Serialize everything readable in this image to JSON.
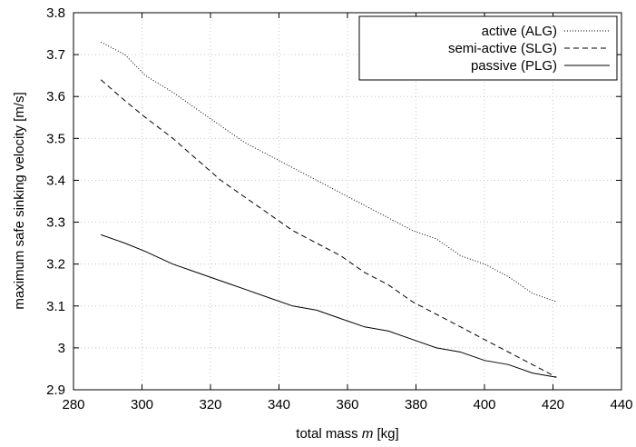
{
  "chart_data": {
    "type": "line",
    "title": "",
    "xlabel_prefix": "total mass ",
    "xlabel_symbol": "m",
    "xlabel_suffix": " [kg]",
    "ylabel": "maximum safe sinking velocity [m/s]",
    "xlim": [
      280,
      440
    ],
    "ylim": [
      2.9,
      3.8
    ],
    "xticks": [
      280,
      300,
      320,
      340,
      360,
      380,
      400,
      420,
      440
    ],
    "yticks": [
      2.9,
      3,
      3.1,
      3.2,
      3.3,
      3.4,
      3.5,
      3.6,
      3.7,
      3.8
    ],
    "grid": true,
    "legend_position": "top-right",
    "series": [
      {
        "name": "active (ALG)",
        "style": "dotted",
        "x": [
          288,
          295,
          301,
          309,
          316,
          323,
          330,
          337,
          344,
          351,
          358,
          365,
          372,
          379,
          386,
          393,
          400,
          407,
          414,
          421
        ],
        "y": [
          3.73,
          3.7,
          3.65,
          3.61,
          3.57,
          3.53,
          3.49,
          3.46,
          3.43,
          3.4,
          3.37,
          3.34,
          3.31,
          3.28,
          3.26,
          3.22,
          3.2,
          3.17,
          3.13,
          3.11
        ]
      },
      {
        "name": "semi-active (SLG)",
        "style": "dashed",
        "x": [
          288,
          295,
          301,
          309,
          316,
          323,
          330,
          337,
          344,
          351,
          358,
          365,
          372,
          379,
          386,
          393,
          400,
          407,
          414,
          421
        ],
        "y": [
          3.64,
          3.59,
          3.55,
          3.5,
          3.45,
          3.4,
          3.36,
          3.32,
          3.28,
          3.25,
          3.22,
          3.18,
          3.15,
          3.11,
          3.08,
          3.05,
          3.02,
          2.99,
          2.96,
          2.93
        ]
      },
      {
        "name": "passive (PLG)",
        "style": "solid",
        "x": [
          288,
          295,
          301,
          309,
          316,
          323,
          330,
          337,
          344,
          351,
          358,
          365,
          372,
          379,
          386,
          393,
          400,
          407,
          414,
          421
        ],
        "y": [
          3.27,
          3.25,
          3.23,
          3.2,
          3.18,
          3.16,
          3.14,
          3.12,
          3.1,
          3.09,
          3.07,
          3.05,
          3.04,
          3.02,
          3.0,
          2.99,
          2.97,
          2.96,
          2.94,
          2.93
        ]
      }
    ]
  }
}
